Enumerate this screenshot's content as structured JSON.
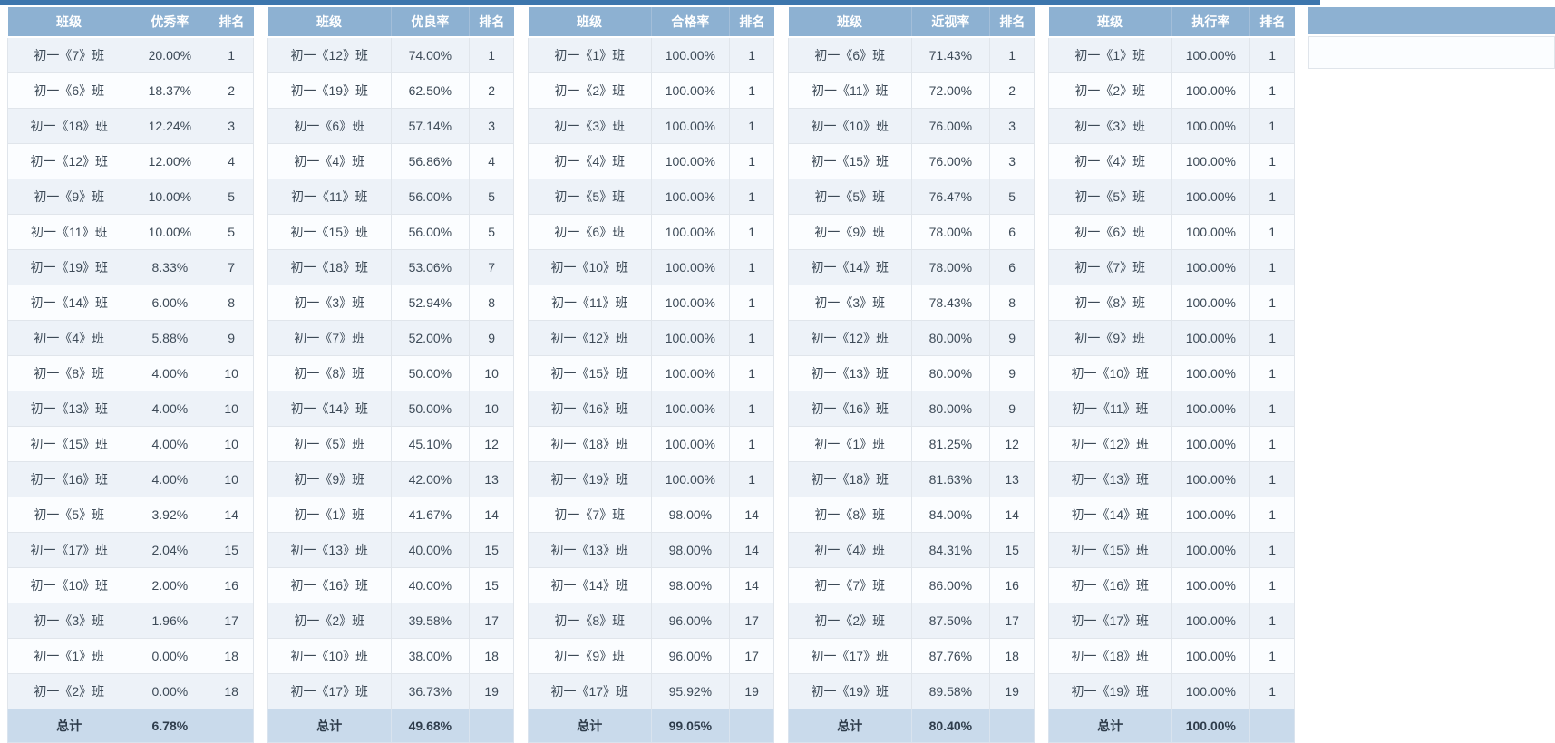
{
  "theme": {
    "top_bar_color": "#3d76ad",
    "header_bg": "#8db1d2",
    "row_odd_bg": "#edf2f8",
    "row_even_bg": "#fbfdff",
    "total_row_bg": "#c9daeb"
  },
  "tables": [
    {
      "name": "excellence-rate",
      "class_header": "班级",
      "metric_label": "优秀率",
      "rank_header": "排名",
      "total_label": "总计",
      "total_value": "6.78%",
      "rows": [
        {
          "class": "初一《7》班",
          "value": "20.00%",
          "rank": "1"
        },
        {
          "class": "初一《6》班",
          "value": "18.37%",
          "rank": "2"
        },
        {
          "class": "初一《18》班",
          "value": "12.24%",
          "rank": "3"
        },
        {
          "class": "初一《12》班",
          "value": "12.00%",
          "rank": "4"
        },
        {
          "class": "初一《9》班",
          "value": "10.00%",
          "rank": "5"
        },
        {
          "class": "初一《11》班",
          "value": "10.00%",
          "rank": "5"
        },
        {
          "class": "初一《19》班",
          "value": "8.33%",
          "rank": "7"
        },
        {
          "class": "初一《14》班",
          "value": "6.00%",
          "rank": "8"
        },
        {
          "class": "初一《4》班",
          "value": "5.88%",
          "rank": "9"
        },
        {
          "class": "初一《8》班",
          "value": "4.00%",
          "rank": "10"
        },
        {
          "class": "初一《13》班",
          "value": "4.00%",
          "rank": "10"
        },
        {
          "class": "初一《15》班",
          "value": "4.00%",
          "rank": "10"
        },
        {
          "class": "初一《16》班",
          "value": "4.00%",
          "rank": "10"
        },
        {
          "class": "初一《5》班",
          "value": "3.92%",
          "rank": "14"
        },
        {
          "class": "初一《17》班",
          "value": "2.04%",
          "rank": "15"
        },
        {
          "class": "初一《10》班",
          "value": "2.00%",
          "rank": "16"
        },
        {
          "class": "初一《3》班",
          "value": "1.96%",
          "rank": "17"
        },
        {
          "class": "初一《1》班",
          "value": "0.00%",
          "rank": "18"
        },
        {
          "class": "初一《2》班",
          "value": "0.00%",
          "rank": "18"
        }
      ]
    },
    {
      "name": "good-rate",
      "class_header": "班级",
      "metric_label": "优良率",
      "rank_header": "排名",
      "total_label": "总计",
      "total_value": "49.68%",
      "rows": [
        {
          "class": "初一《12》班",
          "value": "74.00%",
          "rank": "1"
        },
        {
          "class": "初一《19》班",
          "value": "62.50%",
          "rank": "2"
        },
        {
          "class": "初一《6》班",
          "value": "57.14%",
          "rank": "3"
        },
        {
          "class": "初一《4》班",
          "value": "56.86%",
          "rank": "4"
        },
        {
          "class": "初一《11》班",
          "value": "56.00%",
          "rank": "5"
        },
        {
          "class": "初一《15》班",
          "value": "56.00%",
          "rank": "5"
        },
        {
          "class": "初一《18》班",
          "value": "53.06%",
          "rank": "7"
        },
        {
          "class": "初一《3》班",
          "value": "52.94%",
          "rank": "8"
        },
        {
          "class": "初一《7》班",
          "value": "52.00%",
          "rank": "9"
        },
        {
          "class": "初一《8》班",
          "value": "50.00%",
          "rank": "10"
        },
        {
          "class": "初一《14》班",
          "value": "50.00%",
          "rank": "10"
        },
        {
          "class": "初一《5》班",
          "value": "45.10%",
          "rank": "12"
        },
        {
          "class": "初一《9》班",
          "value": "42.00%",
          "rank": "13"
        },
        {
          "class": "初一《1》班",
          "value": "41.67%",
          "rank": "14"
        },
        {
          "class": "初一《13》班",
          "value": "40.00%",
          "rank": "15"
        },
        {
          "class": "初一《16》班",
          "value": "40.00%",
          "rank": "15"
        },
        {
          "class": "初一《2》班",
          "value": "39.58%",
          "rank": "17"
        },
        {
          "class": "初一《10》班",
          "value": "38.00%",
          "rank": "18"
        },
        {
          "class": "初一《17》班",
          "value": "36.73%",
          "rank": "19"
        }
      ]
    },
    {
      "name": "pass-rate",
      "class_header": "班级",
      "metric_label": "合格率",
      "rank_header": "排名",
      "total_label": "总计",
      "total_value": "99.05%",
      "rows": [
        {
          "class": "初一《1》班",
          "value": "100.00%",
          "rank": "1"
        },
        {
          "class": "初一《2》班",
          "value": "100.00%",
          "rank": "1"
        },
        {
          "class": "初一《3》班",
          "value": "100.00%",
          "rank": "1"
        },
        {
          "class": "初一《4》班",
          "value": "100.00%",
          "rank": "1"
        },
        {
          "class": "初一《5》班",
          "value": "100.00%",
          "rank": "1"
        },
        {
          "class": "初一《6》班",
          "value": "100.00%",
          "rank": "1"
        },
        {
          "class": "初一《10》班",
          "value": "100.00%",
          "rank": "1"
        },
        {
          "class": "初一《11》班",
          "value": "100.00%",
          "rank": "1"
        },
        {
          "class": "初一《12》班",
          "value": "100.00%",
          "rank": "1"
        },
        {
          "class": "初一《15》班",
          "value": "100.00%",
          "rank": "1"
        },
        {
          "class": "初一《16》班",
          "value": "100.00%",
          "rank": "1"
        },
        {
          "class": "初一《18》班",
          "value": "100.00%",
          "rank": "1"
        },
        {
          "class": "初一《19》班",
          "value": "100.00%",
          "rank": "1"
        },
        {
          "class": "初一《7》班",
          "value": "98.00%",
          "rank": "14"
        },
        {
          "class": "初一《13》班",
          "value": "98.00%",
          "rank": "14"
        },
        {
          "class": "初一《14》班",
          "value": "98.00%",
          "rank": "14"
        },
        {
          "class": "初一《8》班",
          "value": "96.00%",
          "rank": "17"
        },
        {
          "class": "初一《9》班",
          "value": "96.00%",
          "rank": "17"
        },
        {
          "class": "初一《17》班",
          "value": "95.92%",
          "rank": "19"
        }
      ]
    },
    {
      "name": "myopia-rate",
      "class_header": "班级",
      "metric_label": "近视率",
      "rank_header": "排名",
      "total_label": "总计",
      "total_value": "80.40%",
      "rows": [
        {
          "class": "初一《6》班",
          "value": "71.43%",
          "rank": "1"
        },
        {
          "class": "初一《11》班",
          "value": "72.00%",
          "rank": "2"
        },
        {
          "class": "初一《10》班",
          "value": "76.00%",
          "rank": "3"
        },
        {
          "class": "初一《15》班",
          "value": "76.00%",
          "rank": "3"
        },
        {
          "class": "初一《5》班",
          "value": "76.47%",
          "rank": "5"
        },
        {
          "class": "初一《9》班",
          "value": "78.00%",
          "rank": "6"
        },
        {
          "class": "初一《14》班",
          "value": "78.00%",
          "rank": "6"
        },
        {
          "class": "初一《3》班",
          "value": "78.43%",
          "rank": "8"
        },
        {
          "class": "初一《12》班",
          "value": "80.00%",
          "rank": "9"
        },
        {
          "class": "初一《13》班",
          "value": "80.00%",
          "rank": "9"
        },
        {
          "class": "初一《16》班",
          "value": "80.00%",
          "rank": "9"
        },
        {
          "class": "初一《1》班",
          "value": "81.25%",
          "rank": "12"
        },
        {
          "class": "初一《18》班",
          "value": "81.63%",
          "rank": "13"
        },
        {
          "class": "初一《8》班",
          "value": "84.00%",
          "rank": "14"
        },
        {
          "class": "初一《4》班",
          "value": "84.31%",
          "rank": "15"
        },
        {
          "class": "初一《7》班",
          "value": "86.00%",
          "rank": "16"
        },
        {
          "class": "初一《2》班",
          "value": "87.50%",
          "rank": "17"
        },
        {
          "class": "初一《17》班",
          "value": "87.76%",
          "rank": "18"
        },
        {
          "class": "初一《19》班",
          "value": "89.58%",
          "rank": "19"
        }
      ]
    },
    {
      "name": "execution-rate",
      "class_header": "班级",
      "metric_label": "执行率",
      "rank_header": "排名",
      "total_label": "总计",
      "total_value": "100.00%",
      "rows": [
        {
          "class": "初一《1》班",
          "value": "100.00%",
          "rank": "1"
        },
        {
          "class": "初一《2》班",
          "value": "100.00%",
          "rank": "1"
        },
        {
          "class": "初一《3》班",
          "value": "100.00%",
          "rank": "1"
        },
        {
          "class": "初一《4》班",
          "value": "100.00%",
          "rank": "1"
        },
        {
          "class": "初一《5》班",
          "value": "100.00%",
          "rank": "1"
        },
        {
          "class": "初一《6》班",
          "value": "100.00%",
          "rank": "1"
        },
        {
          "class": "初一《7》班",
          "value": "100.00%",
          "rank": "1"
        },
        {
          "class": "初一《8》班",
          "value": "100.00%",
          "rank": "1"
        },
        {
          "class": "初一《9》班",
          "value": "100.00%",
          "rank": "1"
        },
        {
          "class": "初一《10》班",
          "value": "100.00%",
          "rank": "1"
        },
        {
          "class": "初一《11》班",
          "value": "100.00%",
          "rank": "1"
        },
        {
          "class": "初一《12》班",
          "value": "100.00%",
          "rank": "1"
        },
        {
          "class": "初一《13》班",
          "value": "100.00%",
          "rank": "1"
        },
        {
          "class": "初一《14》班",
          "value": "100.00%",
          "rank": "1"
        },
        {
          "class": "初一《15》班",
          "value": "100.00%",
          "rank": "1"
        },
        {
          "class": "初一《16》班",
          "value": "100.00%",
          "rank": "1"
        },
        {
          "class": "初一《17》班",
          "value": "100.00%",
          "rank": "1"
        },
        {
          "class": "初一《18》班",
          "value": "100.00%",
          "rank": "1"
        },
        {
          "class": "初一《19》班",
          "value": "100.00%",
          "rank": "1"
        }
      ]
    }
  ]
}
